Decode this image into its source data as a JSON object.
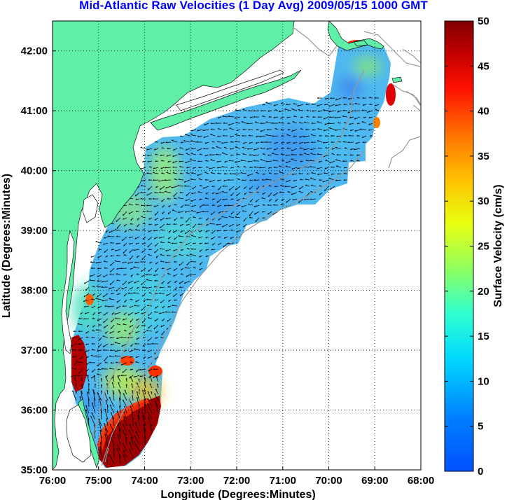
{
  "title": "Mid-Atlantic Raw Velocities (1 Day Avg) 2009/05/15 1000 GMT",
  "map": {
    "xlabel": "Longitude (Degrees:Minutes)",
    "ylabel": "Latitude (Degrees:Minutes)",
    "lon_range": [
      -76,
      -68
    ],
    "lat_range": [
      35,
      42.5
    ],
    "x_ticks": [
      "76:00",
      "75:00",
      "74:00",
      "73:00",
      "72:00",
      "71:00",
      "70:00",
      "69:00",
      "68:00"
    ],
    "y_ticks": [
      "35:00",
      "36:00",
      "37:00",
      "38:00",
      "39:00",
      "40:00",
      "41:00",
      "42:00"
    ],
    "grid": "dotted",
    "land_color": "#5fefa7",
    "ocean_color": "#ffffff",
    "vector_color": "#000000"
  },
  "colorbar": {
    "label": "Surface Velocity (cm/s)",
    "range": [
      0,
      50
    ],
    "ticks": [
      "0",
      "5",
      "10",
      "15",
      "20",
      "25",
      "30",
      "35",
      "40",
      "45",
      "50"
    ],
    "colormap": "jet"
  }
}
